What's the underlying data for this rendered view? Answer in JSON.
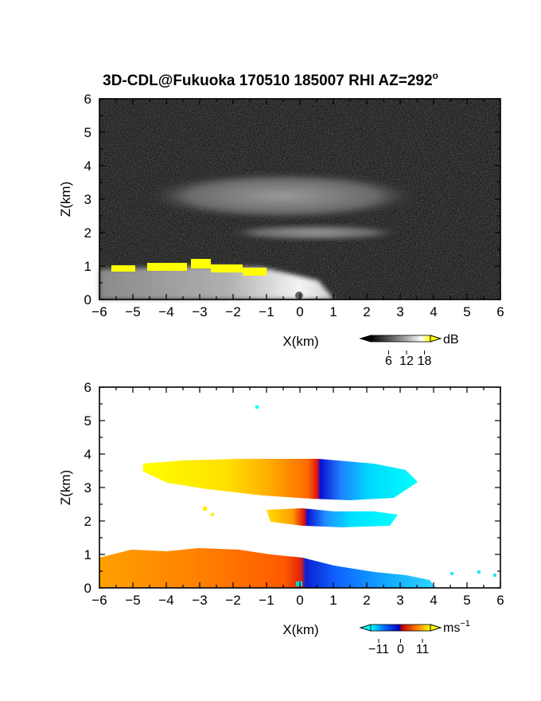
{
  "title": "3D-CDL@Fukuoka 170510 185007 RHI AZ=292",
  "title_superscript": "o",
  "chart_data": [
    {
      "type": "heatmap",
      "panel": "backscatter",
      "xlabel": "X(km)",
      "ylabel": "Z(km)",
      "xlim": [
        -6,
        6
      ],
      "ylim": [
        0,
        6
      ],
      "xticks": [
        "−6",
        "−5",
        "−4",
        "−3",
        "−2",
        "−1",
        "0",
        "1",
        "2",
        "3",
        "4",
        "5",
        "6"
      ],
      "yticks": [
        "0",
        "1",
        "2",
        "3",
        "4",
        "5",
        "6"
      ],
      "colorbar": {
        "unit": "dB",
        "ticks": [
          "6",
          "12",
          "18"
        ],
        "range": [
          0,
          20
        ],
        "colors": [
          "#000000",
          "#ffffff",
          "#ffff00"
        ]
      },
      "features": [
        {
          "name": "boundary layer",
          "x": [
            -6,
            0.5
          ],
          "z_top": [
            0.9,
            0.1
          ],
          "level_db": 14
        },
        {
          "name": "upper cloud layer",
          "x": [
            -4.7,
            3.3
          ],
          "z": [
            2.9,
            4.0
          ],
          "level_db": 10
        },
        {
          "name": "lower cloud layer",
          "x": [
            -2.8,
            2.6
          ],
          "z": [
            1.9,
            2.4
          ],
          "level_db": 9
        },
        {
          "name": "saturated cloud base",
          "x": [
            -6,
            -1
          ],
          "z": [
            0.8,
            1.2
          ],
          "level_db": 20
        }
      ]
    },
    {
      "type": "heatmap",
      "panel": "doppler velocity",
      "xlabel": "X(km)",
      "ylabel": "Z(km)",
      "xlim": [
        -6,
        6
      ],
      "ylim": [
        0,
        6
      ],
      "xticks": [
        "−6",
        "−5",
        "−4",
        "−3",
        "−2",
        "−1",
        "0",
        "1",
        "2",
        "3",
        "4",
        "5",
        "6"
      ],
      "yticks": [
        "0",
        "1",
        "2",
        "3",
        "4",
        "5",
        "6"
      ],
      "colorbar": {
        "unit": "ms",
        "unit_superscript": "−1",
        "ticks": [
          "−11",
          "0",
          "11"
        ],
        "range": [
          -15,
          15
        ],
        "colors": [
          "#00ffff",
          "#0000ff",
          "#ff0000",
          "#ffff00"
        ]
      },
      "features": [
        {
          "name": "boundary layer",
          "x": [
            -6,
            4
          ],
          "z_top": [
            0.9,
            0.1
          ],
          "velocity_ms": [
            8,
            -10
          ]
        },
        {
          "name": "upper cloud layer",
          "x": [
            -4.7,
            3.4
          ],
          "z": [
            2.6,
            3.8
          ],
          "velocity_ms": [
            12,
            -12
          ]
        },
        {
          "name": "lower cloud layer",
          "x": [
            -1,
            2.6
          ],
          "z": [
            1.9,
            2.3
          ],
          "velocity_ms": [
            10,
            -10
          ]
        }
      ]
    }
  ]
}
